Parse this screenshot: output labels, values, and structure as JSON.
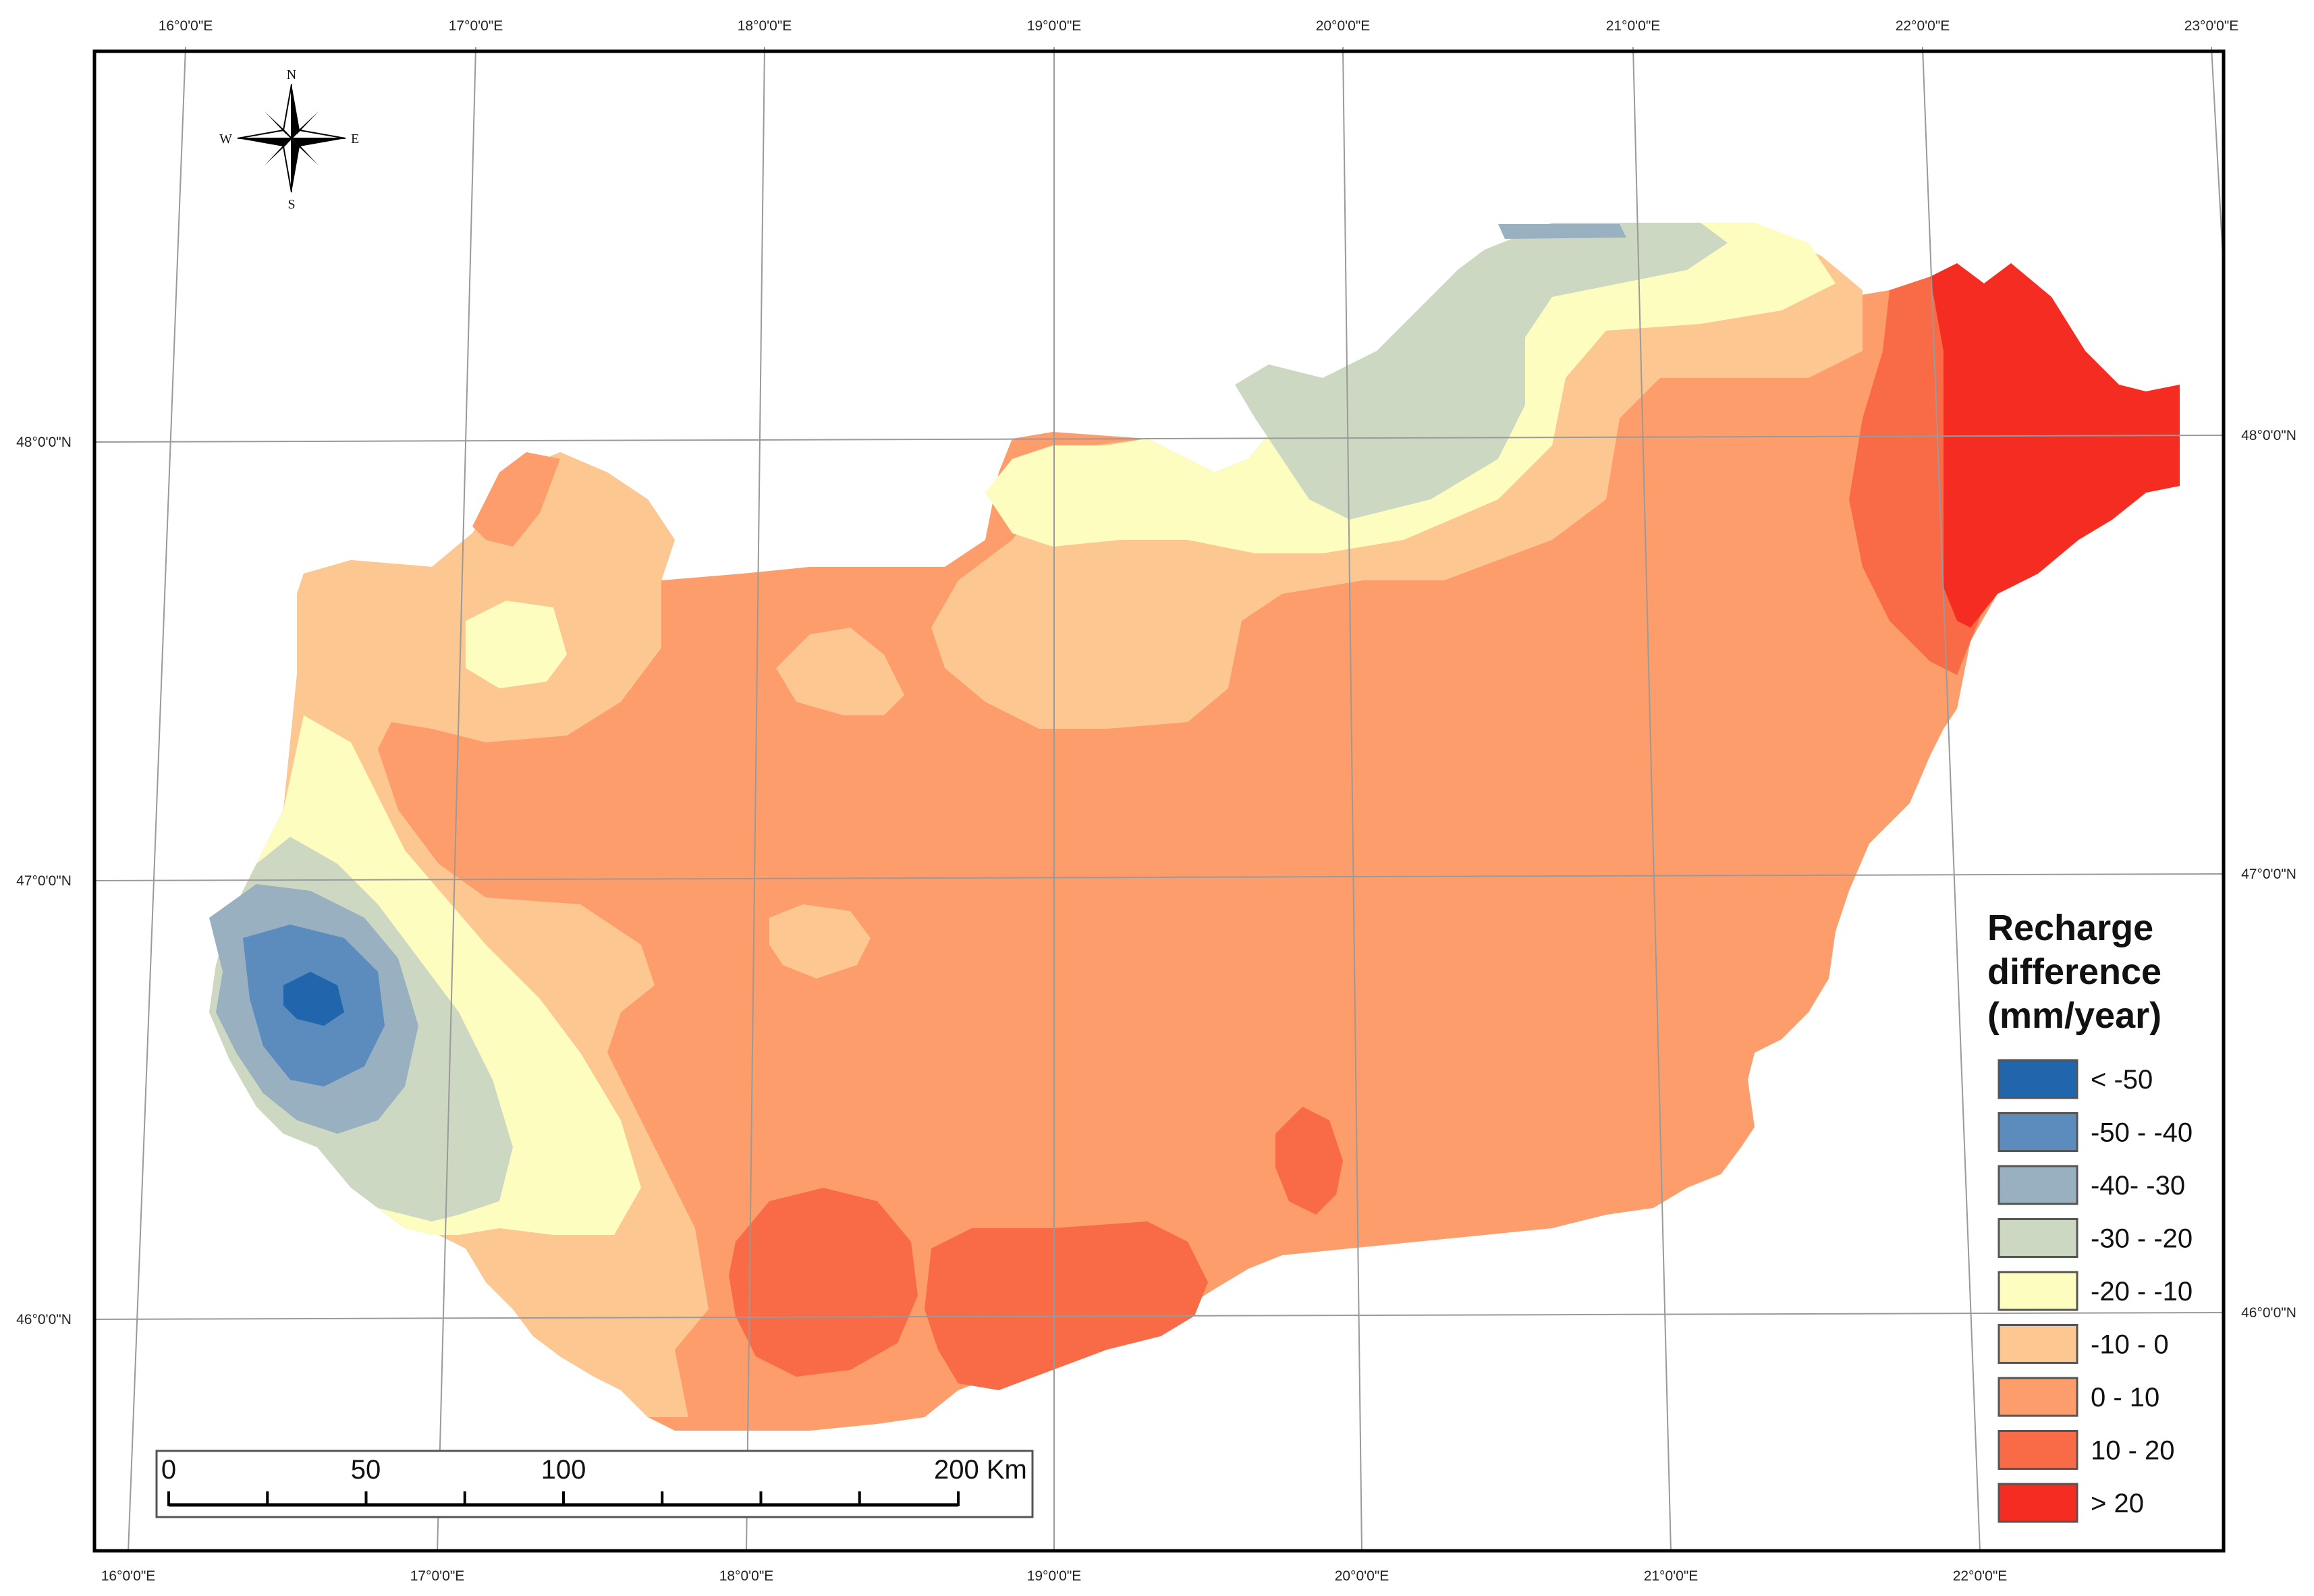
{
  "map": {
    "longitude_labels_top": [
      "16°0'0\"E",
      "17°0'0\"E",
      "18°0'0\"E",
      "19°0'0\"E",
      "20°0'0\"E",
      "21°0'0\"E",
      "22°0'0\"E",
      "23°0'0\"E"
    ],
    "longitude_labels_bottom": [
      "16°0'0\"E",
      "17°0'0\"E",
      "18°0'0\"E",
      "19°0'0\"E",
      "20°0'0\"E",
      "21°0'0\"E",
      "22°0'0\"E"
    ],
    "latitude_labels_left": [
      "48°0'0\"N",
      "47°0'0\"N",
      "46°0'0\"N"
    ],
    "latitude_labels_right": [
      "48°0'0\"N",
      "47°0'0\"N",
      "46°0'0\"N"
    ],
    "compass": {
      "n": "N",
      "s": "S",
      "e": "E",
      "w": "W"
    }
  },
  "legend": {
    "title_lines": [
      "Recharge",
      "difference",
      "(mm/year)"
    ],
    "classes": [
      {
        "label": "< -50",
        "color": "#2166ac"
      },
      {
        "label": "-50 - -40",
        "color": "#5b8cbd"
      },
      {
        "label": "-40- -30",
        "color": "#98b0bf"
      },
      {
        "label": "-30 - -20",
        "color": "#cdd8c2"
      },
      {
        "label": "-20 - -10",
        "color": "#fdfdbf"
      },
      {
        "label": "-10 - 0",
        "color": "#fdc791"
      },
      {
        "label": "0 - 10",
        "color": "#fc9d6b"
      },
      {
        "label": "10 - 20",
        "color": "#f96a46"
      },
      {
        "label": "> 20",
        "color": "#f42c22"
      }
    ]
  },
  "scale_bar": {
    "labels": [
      "0",
      "50",
      "100",
      "200 Km"
    ]
  }
}
